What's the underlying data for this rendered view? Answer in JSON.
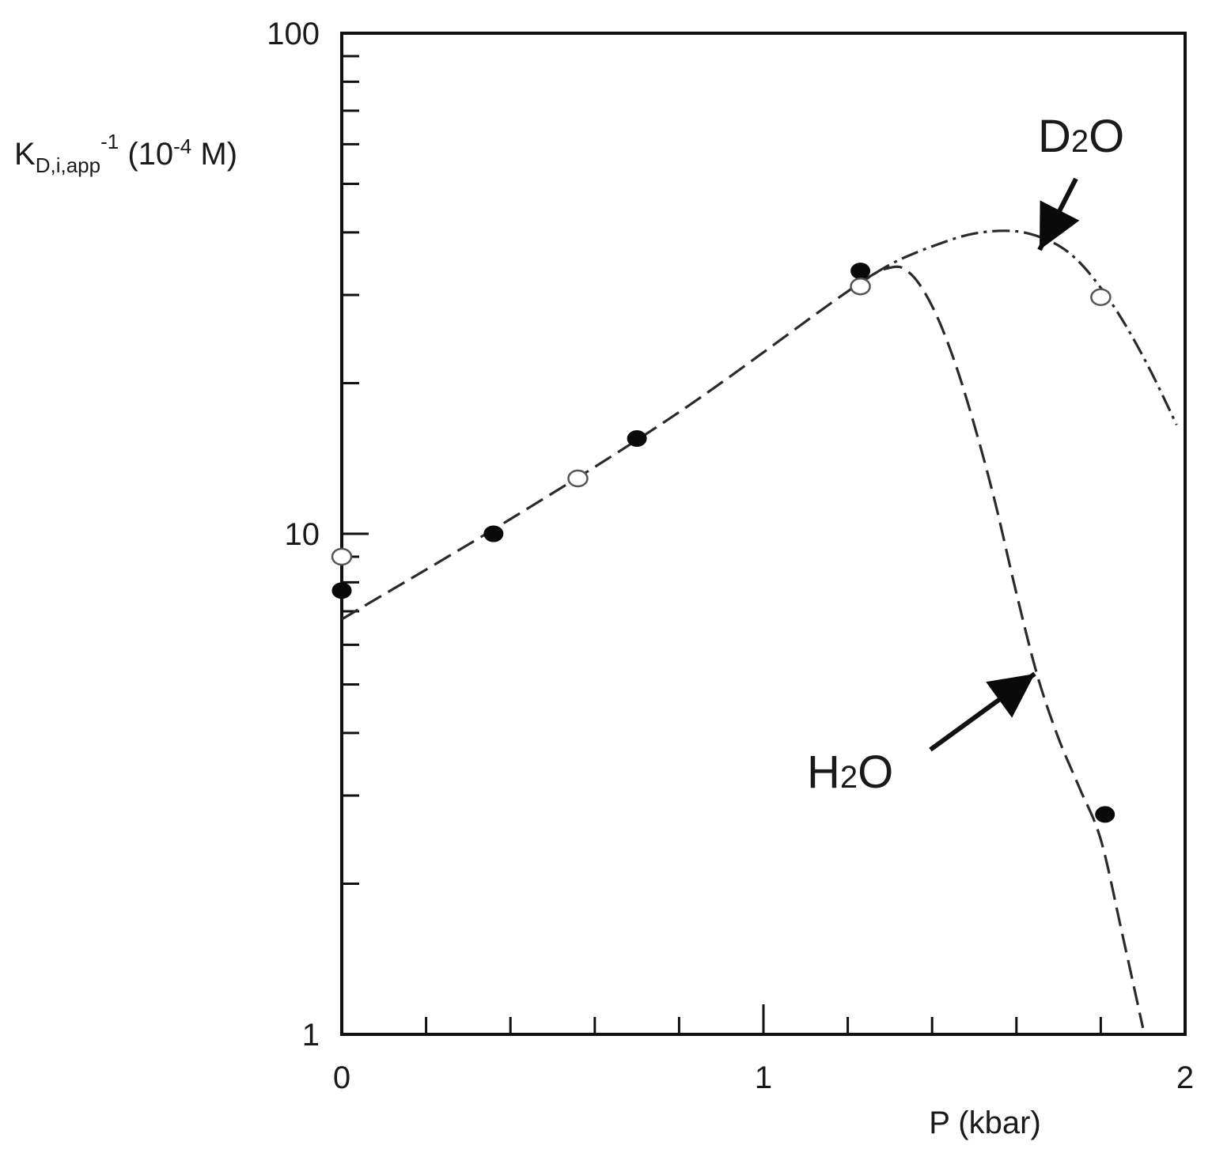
{
  "chart_data": {
    "type": "scatter",
    "title": "",
    "xlabel": "P (kbar)",
    "ylabel": {
      "main": "K",
      "sub": "D,i,app",
      "sup": "-1",
      "units_prefix": " (10",
      "units_exp": "-4",
      "units_suffix": " M)"
    },
    "xlim": [
      0,
      2
    ],
    "ylim": [
      1,
      100
    ],
    "y_scale": "log",
    "grid": false,
    "legend": "none",
    "x_ticks": [
      {
        "value": 0,
        "label": "0"
      },
      {
        "value": 1,
        "label": "1"
      },
      {
        "value": 2,
        "label": "2"
      }
    ],
    "x_minor_ticks": [
      0.2,
      0.4,
      0.6,
      0.8,
      1.2,
      1.4,
      1.6,
      1.8
    ],
    "y_ticks": [
      {
        "value": 1,
        "label": "1"
      },
      {
        "value": 10,
        "label": "10"
      },
      {
        "value": 100,
        "label": "100"
      }
    ],
    "y_minor_ticks": [
      2,
      3,
      4,
      5,
      6,
      7,
      8,
      9,
      20,
      30,
      40,
      50,
      60,
      70,
      80,
      90
    ],
    "series": [
      {
        "name": "H₂O",
        "marker": "filled",
        "points": [
          {
            "x": 0.0,
            "y": 7.7
          },
          {
            "x": 0.36,
            "y": 10.0
          },
          {
            "x": 0.7,
            "y": 15.5
          },
          {
            "x": 1.23,
            "y": 33.5
          },
          {
            "x": 1.81,
            "y": 2.75
          }
        ],
        "curve": [
          {
            "x": 0.0,
            "y": 6.75
          },
          {
            "x": 0.4,
            "y": 10.7
          },
          {
            "x": 0.8,
            "y": 17.5
          },
          {
            "x": 1.2,
            "y": 30.5
          },
          {
            "x": 1.3,
            "y": 34.0
          },
          {
            "x": 1.35,
            "y": 33.0
          },
          {
            "x": 1.4,
            "y": 28.5
          },
          {
            "x": 1.45,
            "y": 22.5
          },
          {
            "x": 1.5,
            "y": 16.5
          },
          {
            "x": 1.55,
            "y": 11.5
          },
          {
            "x": 1.6,
            "y": 7.6
          },
          {
            "x": 1.65,
            "y": 5.2
          },
          {
            "x": 1.7,
            "y": 3.9
          },
          {
            "x": 1.75,
            "y": 3.1
          },
          {
            "x": 1.8,
            "y": 2.45
          },
          {
            "x": 1.85,
            "y": 1.6
          },
          {
            "x": 1.9,
            "y": 1.03
          }
        ]
      },
      {
        "name": "D₂O",
        "marker": "open",
        "points": [
          {
            "x": 0.0,
            "y": 9.0
          },
          {
            "x": 0.56,
            "y": 12.9
          },
          {
            "x": 1.23,
            "y": 31.2
          },
          {
            "x": 1.8,
            "y": 29.7
          }
        ],
        "curve": [
          {
            "x": 1.2,
            "y": 30.5
          },
          {
            "x": 1.3,
            "y": 34.5
          },
          {
            "x": 1.4,
            "y": 37.5
          },
          {
            "x": 1.5,
            "y": 39.8
          },
          {
            "x": 1.6,
            "y": 40.2
          },
          {
            "x": 1.68,
            "y": 38.4
          },
          {
            "x": 1.74,
            "y": 35.5
          },
          {
            "x": 1.8,
            "y": 31.0
          },
          {
            "x": 1.86,
            "y": 26.0
          },
          {
            "x": 1.92,
            "y": 21.0
          },
          {
            "x": 1.98,
            "y": 16.5
          }
        ]
      }
    ],
    "annotations": [
      {
        "text_main": "D",
        "text_sub": "2",
        "text_end": "O",
        "series": "D₂O"
      },
      {
        "text_main": "H",
        "text_sub": "2",
        "text_end": "O",
        "series": "H₂O"
      }
    ]
  }
}
